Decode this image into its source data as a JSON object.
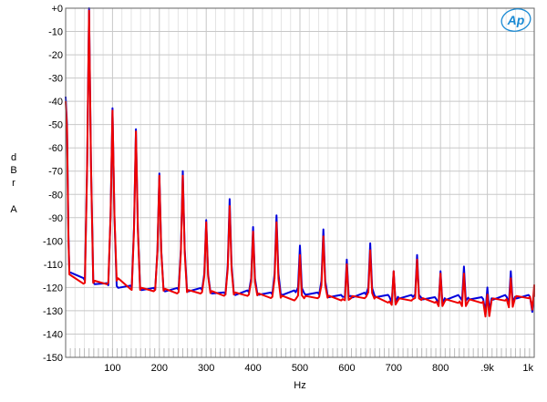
{
  "chart_data": {
    "type": "line",
    "xlabel": "Hz",
    "ylabel_letters": [
      "d",
      "B",
      "r",
      "A"
    ],
    "xlim": [
      0,
      1000
    ],
    "ylim": [
      -150,
      0
    ],
    "grid": true,
    "logo_text": "Ap",
    "x_ticks": [
      {
        "value": 100,
        "label": "100"
      },
      {
        "value": 200,
        "label": "200"
      },
      {
        "value": 300,
        "label": "300"
      },
      {
        "value": 400,
        "label": "400"
      },
      {
        "value": 500,
        "label": "500"
      },
      {
        "value": 600,
        "label": "600"
      },
      {
        "value": 700,
        "label": "700"
      },
      {
        "value": 800,
        "label": "800"
      },
      {
        "value": 900,
        "label": ".9k"
      },
      {
        "value": 1000,
        "label": "1k"
      }
    ],
    "y_ticks": [
      {
        "value": 0,
        "label": "+0"
      },
      {
        "value": -10,
        "label": "-10"
      },
      {
        "value": -20,
        "label": "-20"
      },
      {
        "value": -30,
        "label": "-30"
      },
      {
        "value": -40,
        "label": "-40"
      },
      {
        "value": -50,
        "label": "-50"
      },
      {
        "value": -60,
        "label": "-60"
      },
      {
        "value": -70,
        "label": "-70"
      },
      {
        "value": -80,
        "label": "-80"
      },
      {
        "value": -90,
        "label": "-90"
      },
      {
        "value": -100,
        "label": "-100"
      },
      {
        "value": -110,
        "label": "-110"
      },
      {
        "value": -120,
        "label": "-120"
      },
      {
        "value": -130,
        "label": "-130"
      },
      {
        "value": -140,
        "label": "-140"
      },
      {
        "value": -150,
        "label": "-150"
      }
    ],
    "series": [
      {
        "color": "#0000dd",
        "start_level": -38,
        "peaks": [
          {
            "x": 50,
            "y": 0
          },
          {
            "x": 100,
            "y": -43
          },
          {
            "x": 150,
            "y": -52
          },
          {
            "x": 200,
            "y": -71
          },
          {
            "x": 250,
            "y": -70
          },
          {
            "x": 300,
            "y": -91
          },
          {
            "x": 350,
            "y": -82
          },
          {
            "x": 400,
            "y": -94
          },
          {
            "x": 450,
            "y": -89
          },
          {
            "x": 500,
            "y": -102
          },
          {
            "x": 550,
            "y": -95
          },
          {
            "x": 600,
            "y": -108
          },
          {
            "x": 650,
            "y": -101
          },
          {
            "x": 700,
            "y": -113
          },
          {
            "x": 750,
            "y": -106
          },
          {
            "x": 800,
            "y": -113
          },
          {
            "x": 850,
            "y": -111
          },
          {
            "x": 900,
            "y": -120
          },
          {
            "x": 950,
            "y": -113
          },
          {
            "x": 1000,
            "y": -121
          }
        ],
        "floor": [
          {
            "x": 5,
            "y": -113
          },
          {
            "x": 40,
            "y": -117
          },
          {
            "x": 90,
            "y": -119
          },
          {
            "x": 140,
            "y": -120
          },
          {
            "x": 190,
            "y": -121
          },
          {
            "x": 240,
            "y": -121
          },
          {
            "x": 290,
            "y": -121
          },
          {
            "x": 340,
            "y": -123
          },
          {
            "x": 390,
            "y": -122
          },
          {
            "x": 440,
            "y": -123
          },
          {
            "x": 490,
            "y": -122
          },
          {
            "x": 540,
            "y": -123
          },
          {
            "x": 590,
            "y": -124
          },
          {
            "x": 640,
            "y": -123
          },
          {
            "x": 690,
            "y": -124
          },
          {
            "x": 740,
            "y": -124
          },
          {
            "x": 790,
            "y": -125
          },
          {
            "x": 840,
            "y": -124
          },
          {
            "x": 890,
            "y": -125
          },
          {
            "x": 940,
            "y": -124
          },
          {
            "x": 990,
            "y": -124
          }
        ]
      },
      {
        "color": "#ee0000",
        "start_level": -40,
        "peaks": [
          {
            "x": 50,
            "y": -1
          },
          {
            "x": 100,
            "y": -44
          },
          {
            "x": 150,
            "y": -53
          },
          {
            "x": 200,
            "y": -72
          },
          {
            "x": 250,
            "y": -72
          },
          {
            "x": 300,
            "y": -92
          },
          {
            "x": 350,
            "y": -85
          },
          {
            "x": 400,
            "y": -96
          },
          {
            "x": 450,
            "y": -92
          },
          {
            "x": 500,
            "y": -106
          },
          {
            "x": 550,
            "y": -98
          },
          {
            "x": 600,
            "y": -110
          },
          {
            "x": 650,
            "y": -104
          },
          {
            "x": 700,
            "y": -113
          },
          {
            "x": 750,
            "y": -108
          },
          {
            "x": 800,
            "y": -114
          },
          {
            "x": 850,
            "y": -114
          },
          {
            "x": 900,
            "y": -123
          },
          {
            "x": 950,
            "y": -116
          },
          {
            "x": 1000,
            "y": -119
          }
        ],
        "floor": [
          {
            "x": 5,
            "y": -114
          },
          {
            "x": 40,
            "y": -118
          },
          {
            "x": 90,
            "y": -118
          },
          {
            "x": 130,
            "y": -116
          },
          {
            "x": 140,
            "y": -121
          },
          {
            "x": 190,
            "y": -121
          },
          {
            "x": 240,
            "y": -122
          },
          {
            "x": 290,
            "y": -122
          },
          {
            "x": 340,
            "y": -123
          },
          {
            "x": 390,
            "y": -123
          },
          {
            "x": 440,
            "y": -124
          },
          {
            "x": 490,
            "y": -125
          },
          {
            "x": 540,
            "y": -124
          },
          {
            "x": 590,
            "y": -125
          },
          {
            "x": 640,
            "y": -124
          },
          {
            "x": 690,
            "y": -126
          },
          {
            "x": 740,
            "y": -125
          },
          {
            "x": 790,
            "y": -126
          },
          {
            "x": 840,
            "y": -126
          },
          {
            "x": 890,
            "y": -126
          },
          {
            "x": 940,
            "y": -125
          },
          {
            "x": 990,
            "y": -124
          }
        ]
      }
    ]
  }
}
